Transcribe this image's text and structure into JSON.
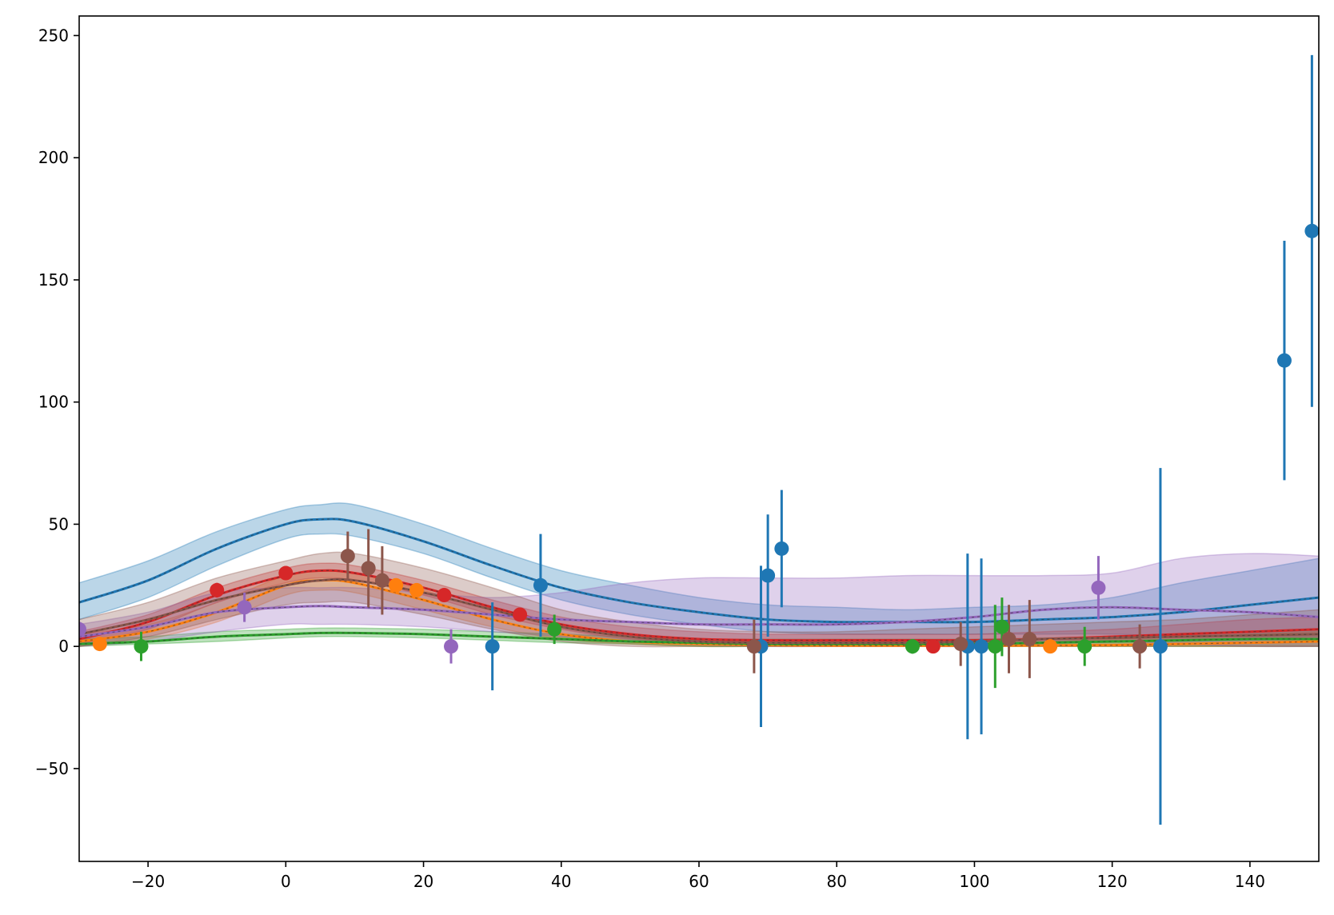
{
  "chart_data": {
    "type": "scatter",
    "title": "",
    "xlabel": "",
    "ylabel": "",
    "xlim": [
      -30,
      150
    ],
    "ylim": [
      -88,
      258
    ],
    "grid": false,
    "legend": "none",
    "xticks": [
      {
        "v": -20,
        "label": "−20"
      },
      {
        "v": 0,
        "label": "0"
      },
      {
        "v": 20,
        "label": "20"
      },
      {
        "v": 40,
        "label": "40"
      },
      {
        "v": 60,
        "label": "60"
      },
      {
        "v": 80,
        "label": "80"
      },
      {
        "v": 100,
        "label": "100"
      },
      {
        "v": 120,
        "label": "120"
      },
      {
        "v": 140,
        "label": "140"
      }
    ],
    "yticks": [
      {
        "v": -50,
        "label": "−50"
      },
      {
        "v": 0,
        "label": "0"
      },
      {
        "v": 50,
        "label": "50"
      },
      {
        "v": 100,
        "label": "100"
      },
      {
        "v": 150,
        "label": "150"
      },
      {
        "v": 200,
        "label": "200"
      },
      {
        "v": 250,
        "label": "250"
      }
    ],
    "series": [
      {
        "color": "#1f77b4",
        "points": [
          {
            "x": 30,
            "y": 0,
            "err": 18
          },
          {
            "x": 37,
            "y": 25,
            "err": 21
          },
          {
            "x": 69,
            "y": 0,
            "err": 33
          },
          {
            "x": 70,
            "y": 29,
            "err": 25
          },
          {
            "x": 72,
            "y": 40,
            "err": 24
          },
          {
            "x": 99,
            "y": 0,
            "err": 38
          },
          {
            "x": 101,
            "y": 0,
            "err": 36
          },
          {
            "x": 127,
            "y": 0,
            "err": 73
          },
          {
            "x": 145,
            "y": 117,
            "err": 49
          },
          {
            "x": 149,
            "y": 170,
            "err": 72
          }
        ],
        "model": {
          "x": [
            -30,
            -20,
            -10,
            0,
            5,
            10,
            20,
            30,
            40,
            50,
            60,
            70,
            80,
            90,
            100,
            110,
            120,
            130,
            140,
            150
          ],
          "y": [
            18,
            27,
            40,
            50,
            52,
            51,
            43,
            33,
            24,
            18,
            14,
            11,
            10,
            10,
            10,
            11,
            12,
            14,
            17,
            20
          ],
          "lo": [
            11,
            20,
            33,
            44,
            46,
            45,
            38,
            28,
            19,
            13,
            9,
            6,
            5,
            5,
            5,
            5,
            5,
            4,
            4,
            4
          ],
          "hi": [
            26,
            35,
            47,
            56,
            58,
            58,
            50,
            40,
            31,
            25,
            20,
            17,
            16,
            15,
            16,
            17,
            20,
            26,
            31,
            36
          ]
        }
      },
      {
        "color": "#ff7f0e",
        "points": [
          {
            "x": -27,
            "y": 1,
            "err": 0
          },
          {
            "x": 16,
            "y": 25,
            "err": 0
          },
          {
            "x": 19,
            "y": 23,
            "err": 0
          },
          {
            "x": 111,
            "y": 0,
            "err": 0
          }
        ],
        "model": {
          "x": [
            -30,
            -20,
            -10,
            0,
            5,
            10,
            20,
            30,
            40,
            50,
            60,
            70,
            80,
            90,
            100,
            110,
            120,
            130,
            140,
            150
          ],
          "y": [
            2,
            6,
            14,
            25,
            27,
            26,
            19,
            11,
            5,
            2,
            1,
            0.5,
            0.3,
            0.3,
            0.3,
            0.4,
            0.5,
            1,
            1.5,
            2
          ],
          "lo": [
            0,
            3,
            10,
            21,
            23,
            22,
            15,
            8,
            3,
            1,
            0,
            0,
            0,
            0,
            0,
            0,
            0,
            0,
            0,
            0
          ],
          "hi": [
            5,
            9,
            18,
            29,
            31,
            30,
            23,
            15,
            8,
            4,
            3,
            2,
            2,
            2,
            2,
            2,
            3,
            4,
            5,
            6
          ]
        }
      },
      {
        "color": "#2ca02c",
        "points": [
          {
            "x": -21,
            "y": 0,
            "err": 6
          },
          {
            "x": 39,
            "y": 7,
            "err": 6
          },
          {
            "x": 91,
            "y": 0,
            "err": 3
          },
          {
            "x": 103,
            "y": 0,
            "err": 17
          },
          {
            "x": 104,
            "y": 8,
            "err": 12
          },
          {
            "x": 116,
            "y": 0,
            "err": 8
          }
        ],
        "model": {
          "x": [
            -30,
            -20,
            -10,
            0,
            5,
            10,
            20,
            30,
            40,
            50,
            60,
            70,
            80,
            90,
            100,
            110,
            120,
            130,
            140,
            150
          ],
          "y": [
            1,
            2,
            4,
            5,
            5.5,
            5.5,
            5,
            4,
            3,
            2,
            1.5,
            1,
            1,
            1,
            1,
            1.5,
            2,
            2.5,
            3,
            3
          ],
          "lo": [
            0,
            1,
            2,
            3.5,
            4,
            4,
            3.5,
            2.5,
            1.5,
            1,
            0,
            0,
            0,
            0,
            0,
            0,
            0,
            0,
            0,
            0
          ],
          "hi": [
            3,
            4,
            6,
            7,
            7.5,
            7.5,
            7,
            6,
            5,
            4,
            3,
            3,
            3,
            3,
            3,
            3.5,
            4,
            5,
            6,
            7
          ]
        }
      },
      {
        "color": "#d62728",
        "points": [
          {
            "x": -10,
            "y": 23,
            "err": 3
          },
          {
            "x": 0,
            "y": 30,
            "err": 2
          },
          {
            "x": 23,
            "y": 21,
            "err": 2
          },
          {
            "x": 34,
            "y": 13,
            "err": 2
          },
          {
            "x": 94,
            "y": 0,
            "err": 2
          }
        ],
        "model": {
          "x": [
            -30,
            -20,
            -10,
            0,
            5,
            10,
            20,
            30,
            40,
            50,
            60,
            70,
            80,
            90,
            100,
            110,
            120,
            130,
            140,
            150
          ],
          "y": [
            3,
            10,
            21,
            29,
            31,
            30,
            24,
            16,
            9,
            5,
            3,
            2.5,
            2.5,
            2.5,
            2.5,
            3,
            4,
            5,
            6,
            7
          ],
          "lo": [
            1,
            7,
            18,
            26,
            28,
            27,
            21,
            13,
            7,
            3,
            2,
            1,
            1,
            1,
            1,
            1.5,
            2,
            2.5,
            3,
            3
          ],
          "hi": [
            6,
            13,
            24,
            32,
            34,
            33,
            27,
            19,
            12,
            8,
            6,
            5,
            5,
            5,
            5,
            6,
            7,
            9,
            11,
            12
          ]
        }
      },
      {
        "color": "#9467bd",
        "points": [
          {
            "x": -30,
            "y": 7,
            "err": 3
          },
          {
            "x": -6,
            "y": 16,
            "err": 6
          },
          {
            "x": 24,
            "y": 0,
            "err": 7
          },
          {
            "x": 118,
            "y": 24,
            "err": 13
          }
        ],
        "model": {
          "x": [
            -30,
            -20,
            -10,
            0,
            5,
            10,
            20,
            30,
            40,
            50,
            60,
            70,
            80,
            90,
            100,
            110,
            120,
            130,
            140,
            150
          ],
          "y": [
            4,
            8,
            14,
            16,
            16.5,
            16,
            15,
            13,
            11,
            10,
            9,
            9,
            9,
            10,
            12,
            15,
            16,
            15,
            14,
            12
          ],
          "lo": [
            0,
            2,
            6,
            9,
            9,
            9,
            8,
            6,
            4,
            2,
            1,
            0,
            0,
            0,
            0,
            1,
            2,
            1,
            0,
            0
          ],
          "hi": [
            9,
            14,
            22,
            24,
            24,
            24,
            22,
            20,
            22,
            26,
            28,
            28,
            28,
            29,
            29,
            29,
            30,
            36,
            38,
            37
          ]
        }
      },
      {
        "color": "#8c564b",
        "points": [
          {
            "x": 9,
            "y": 37,
            "err": 10
          },
          {
            "x": 12,
            "y": 32,
            "err": 16
          },
          {
            "x": 14,
            "y": 27,
            "err": 14
          },
          {
            "x": 68,
            "y": 0,
            "err": 11
          },
          {
            "x": 98,
            "y": 1,
            "err": 9
          },
          {
            "x": 105,
            "y": 3,
            "err": 14
          },
          {
            "x": 108,
            "y": 3,
            "err": 16
          },
          {
            "x": 124,
            "y": 0,
            "err": 9
          }
        ],
        "model": {
          "x": [
            -30,
            -20,
            -10,
            0,
            5,
            10,
            20,
            30,
            40,
            50,
            60,
            70,
            80,
            90,
            100,
            110,
            120,
            130,
            140,
            150
          ],
          "y": [
            5,
            11,
            19,
            25,
            27,
            27,
            22,
            15,
            8,
            4,
            2,
            1.5,
            1.5,
            1.5,
            2,
            3,
            3.5,
            4,
            4.5,
            5
          ],
          "lo": [
            0,
            4,
            11,
            17,
            18,
            18,
            13,
            7,
            2,
            0,
            0,
            0,
            0,
            0,
            0,
            0,
            0,
            0,
            0,
            0
          ],
          "hi": [
            11,
            18,
            28,
            35,
            38,
            38,
            32,
            24,
            15,
            10,
            7,
            6,
            6,
            7,
            8,
            9,
            10,
            11,
            13,
            15
          ]
        }
      }
    ]
  }
}
